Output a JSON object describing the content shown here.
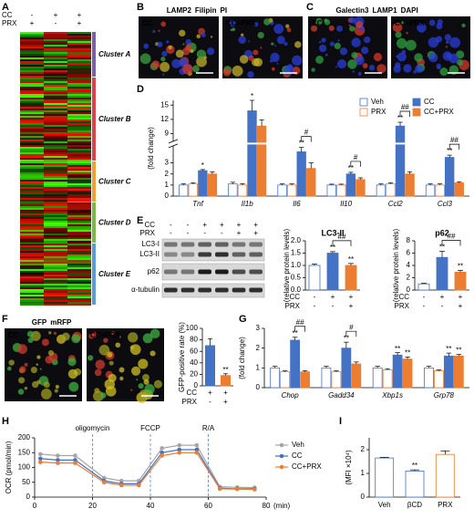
{
  "panel_labels": [
    "A",
    "B",
    "C",
    "D",
    "E",
    "F",
    "G",
    "H",
    "I"
  ],
  "heatmap": {
    "conditions": [
      {
        "name": "CC",
        "values": [
          "-",
          "+",
          "+"
        ]
      },
      {
        "name": "PRX",
        "values": [
          "+",
          "-",
          "+"
        ]
      }
    ],
    "clusters": [
      {
        "name": "Cluster A",
        "color": "#7b5ea7"
      },
      {
        "name": "Cluster B",
        "color": "#d9434d"
      },
      {
        "name": "Cluster C",
        "color": "#f0a030"
      },
      {
        "name": "Cluster D",
        "color": "#7ab648"
      },
      {
        "name": "Cluster E",
        "color": "#5b9bd5"
      }
    ]
  },
  "micrographs": {
    "B": {
      "stains": [
        {
          "text": "LAMP2",
          "color": "#3aa63a"
        },
        {
          "text": "Filipin",
          "color": "#e02020"
        },
        {
          "text": "PI",
          "color": "#2040e0"
        }
      ],
      "panels": [
        "CC",
        "CC+PRX"
      ]
    },
    "C": {
      "stains": [
        {
          "text": "Galectin3",
          "color": "#3aa63a"
        },
        {
          "text": "LAMP1",
          "color": "#e02020"
        },
        {
          "text": "DAPI",
          "color": "#2040e0"
        }
      ],
      "panels": [
        "CC",
        "CC+PRX"
      ]
    },
    "F": {
      "stains": [
        {
          "text": "GFP",
          "color": "#3aa63a"
        },
        {
          "text": "mRFP",
          "color": "#e02020"
        }
      ],
      "panels": [
        "CC",
        "CC+PRX"
      ]
    }
  },
  "blot": {
    "conditions": [
      {
        "name": "CC",
        "values": [
          "-",
          "-",
          "+",
          "+",
          "+",
          "+"
        ]
      },
      {
        "name": "PRX",
        "values": [
          "-",
          "-",
          "-",
          "-",
          "+",
          "+"
        ]
      }
    ],
    "rows": [
      "LC3-I",
      "LC3-II",
      "p62",
      "α-tubulin"
    ]
  },
  "chart_data": [
    {
      "type": "grouped_bar",
      "ylabel": "(fold change)",
      "categories": [
        "Tnf",
        "Il1b",
        "Il6",
        "Il10",
        "Ccl2",
        "Ccl3"
      ],
      "series": [
        {
          "name": "Veh",
          "color": "#ffffff",
          "edgecolor": "#4472c4",
          "values": [
            1,
            1.1,
            1,
            1,
            1,
            1
          ],
          "errors": [
            0.1,
            0.15,
            0.1,
            0.08,
            0.1,
            0.1
          ]
        },
        {
          "name": "PRX",
          "color": "#ffffff",
          "edgecolor": "#ed7d31",
          "values": [
            1.1,
            1,
            1,
            1,
            1.1,
            1
          ],
          "errors": [
            0.1,
            0.12,
            0.1,
            0.08,
            0.1,
            0.1
          ]
        },
        {
          "name": "CC",
          "color": "#4472c4",
          "edgecolor": "#4472c4",
          "values": [
            2.3,
            13.8,
            4,
            2,
            10.6,
            3.5
          ],
          "errors": [
            0.1,
            2.2,
            0.4,
            0.15,
            0.8,
            0.2
          ],
          "labels": [
            "*",
            "*",
            "**",
            "**",
            "**",
            "**"
          ]
        },
        {
          "name": "CC+PRX",
          "color": "#ed7d31",
          "edgecolor": "#ed7d31",
          "values": [
            2,
            10.6,
            2.5,
            1.5,
            2,
            1.2
          ],
          "errors": [
            0.2,
            1.3,
            0.5,
            0.15,
            0.2,
            0.1
          ]
        }
      ],
      "comparisons": [
        null,
        null,
        "#",
        "#",
        "##",
        "##"
      ],
      "ylim": [
        0,
        16
      ],
      "ybreak": [
        4.5,
        7.5
      ],
      "yticks": [
        0,
        1,
        2,
        3,
        9,
        12,
        15
      ],
      "legend": "top-right"
    },
    {
      "type": "bar",
      "title": "LC3-II",
      "ylabel": "(relative protein levels)",
      "values": [
        1,
        1.5,
        1
      ],
      "errors": [
        0.05,
        0.06,
        0.08
      ],
      "colors": [
        "#ffffff",
        "#4472c4",
        "#ed7d31"
      ],
      "edgecolors": [
        "#4472c4",
        "#4472c4",
        "#ed7d31"
      ],
      "labels": [
        null,
        "**",
        "**"
      ],
      "comparison": "##",
      "conditions": [
        {
          "name": "CC",
          "values": [
            "-",
            "+",
            "+"
          ]
        },
        {
          "name": "PRX",
          "values": [
            "-",
            "-",
            "+"
          ]
        }
      ],
      "ylim": [
        0,
        2
      ],
      "yticks": [
        {
          "value": 0,
          "label": "0.0"
        },
        {
          "value": 0.5,
          "label": "0.5"
        },
        {
          "value": 1,
          "label": "1.0"
        },
        {
          "value": 1.5,
          "label": "1.5"
        },
        {
          "value": 2,
          "label": "2.0"
        }
      ]
    },
    {
      "type": "bar",
      "title": "p62",
      "ylabel": "(relative protein levels)",
      "values": [
        1,
        5.3,
        2.9
      ],
      "errors": [
        0.1,
        1,
        0.3
      ],
      "colors": [
        "#ffffff",
        "#4472c4",
        "#ed7d31"
      ],
      "edgecolors": [
        "#4472c4",
        "#4472c4",
        "#ed7d31"
      ],
      "labels": [
        null,
        "**",
        "**"
      ],
      "comparison": "##",
      "conditions": [
        {
          "name": "CC",
          "values": [
            "-",
            "+",
            "+"
          ]
        },
        {
          "name": "PRX",
          "values": [
            "-",
            "-",
            "+"
          ]
        }
      ],
      "ylim": [
        0,
        8
      ],
      "yticks": [
        0,
        2,
        4,
        6,
        8
      ]
    },
    {
      "type": "bar",
      "ylabel": "GFP-positive rate (%)",
      "values": [
        70,
        18
      ],
      "errors": [
        12,
        3
      ],
      "colors": [
        "#4472c4",
        "#ed7d31"
      ],
      "edgecolors": [
        "#4472c4",
        "#ed7d31"
      ],
      "labels": [
        null,
        "**"
      ],
      "conditions": [
        {
          "name": "CC",
          "values": [
            "+",
            "+"
          ]
        },
        {
          "name": "PRX",
          "values": [
            "-",
            "+"
          ]
        }
      ],
      "ylim": [
        0,
        100
      ],
      "yticks": [
        0,
        20,
        40,
        60,
        80,
        100
      ]
    },
    {
      "type": "grouped_bar",
      "ylabel": "(fold change)",
      "categories": [
        "Chop",
        "Gadd34",
        "Xbp1s",
        "Grp78"
      ],
      "series": [
        {
          "name": "Veh",
          "color": "#ffffff",
          "edgecolor": "#4472c4",
          "values": [
            1,
            1,
            1,
            1
          ],
          "errors": [
            0.08,
            0.08,
            0.08,
            0.08
          ]
        },
        {
          "name": "PRX",
          "color": "#ffffff",
          "edgecolor": "#ed7d31",
          "values": [
            0.8,
            0.8,
            0.9,
            0.85
          ],
          "errors": [
            0.05,
            0.05,
            0.06,
            0.05
          ]
        },
        {
          "name": "CC",
          "color": "#4472c4",
          "edgecolor": "#4472c4",
          "values": [
            2.4,
            2,
            1.65,
            1.6
          ],
          "errors": [
            0.15,
            0.3,
            0.12,
            0.15
          ],
          "labels": [
            "**",
            "**",
            "**",
            "**"
          ]
        },
        {
          "name": "CC+PRX",
          "color": "#ed7d31",
          "edgecolor": "#ed7d31",
          "values": [
            0.8,
            1.2,
            1.45,
            1.6
          ],
          "errors": [
            0.06,
            0.1,
            0.1,
            0.08
          ],
          "labels": [
            null,
            null,
            "**",
            "**"
          ]
        }
      ],
      "comparisons": [
        "##",
        "#",
        null,
        null
      ],
      "ylim": [
        0,
        3
      ],
      "yticks": [
        0,
        1,
        2,
        3
      ]
    },
    {
      "type": "line",
      "ylabel": "OCR (pmol/min)",
      "xlabel": "(min)",
      "x": [
        2,
        8,
        14,
        24,
        30,
        36,
        44,
        50,
        56,
        64,
        70,
        76
      ],
      "series": [
        {
          "name": "Veh",
          "color": "#a5a5a5",
          "values": [
            145,
            140,
            140,
            65,
            55,
            55,
            165,
            175,
            175,
            35,
            33,
            32
          ]
        },
        {
          "name": "CC",
          "color": "#4472c4",
          "values": [
            130,
            125,
            125,
            55,
            45,
            45,
            150,
            160,
            160,
            30,
            28,
            28
          ]
        },
        {
          "name": "CC+PRX",
          "color": "#ed7d31",
          "values": [
            118,
            115,
            115,
            50,
            40,
            40,
            140,
            150,
            150,
            28,
            27,
            26
          ]
        }
      ],
      "vlines": [
        {
          "x": 20,
          "label": "oligomycin"
        },
        {
          "x": 40,
          "label": "FCCP"
        },
        {
          "x": 60,
          "label": "R/A"
        }
      ],
      "xlim": [
        0,
        80
      ],
      "xticks": [
        0,
        20,
        40,
        60,
        80
      ],
      "ylim": [
        0,
        200
      ],
      "yticks": [
        0,
        50,
        100,
        150,
        200
      ],
      "legend": "right"
    },
    {
      "type": "bar",
      "ylabel": "(MFI ×10⁴)",
      "categories": [
        "Veh",
        "βCD",
        "PRX"
      ],
      "values": [
        1.65,
        1.1,
        1.8
      ],
      "errors": [
        0.03,
        0.05,
        0.15
      ],
      "colors": [
        "#ffffff",
        "#ffffff",
        "#ffffff"
      ],
      "edgecolors": [
        "#4472c4",
        "#4472c4",
        "#ed7d31"
      ],
      "labels": [
        null,
        "**",
        null
      ],
      "ylim": [
        0,
        2.5
      ],
      "yticks": [
        0,
        1,
        2
      ]
    }
  ]
}
